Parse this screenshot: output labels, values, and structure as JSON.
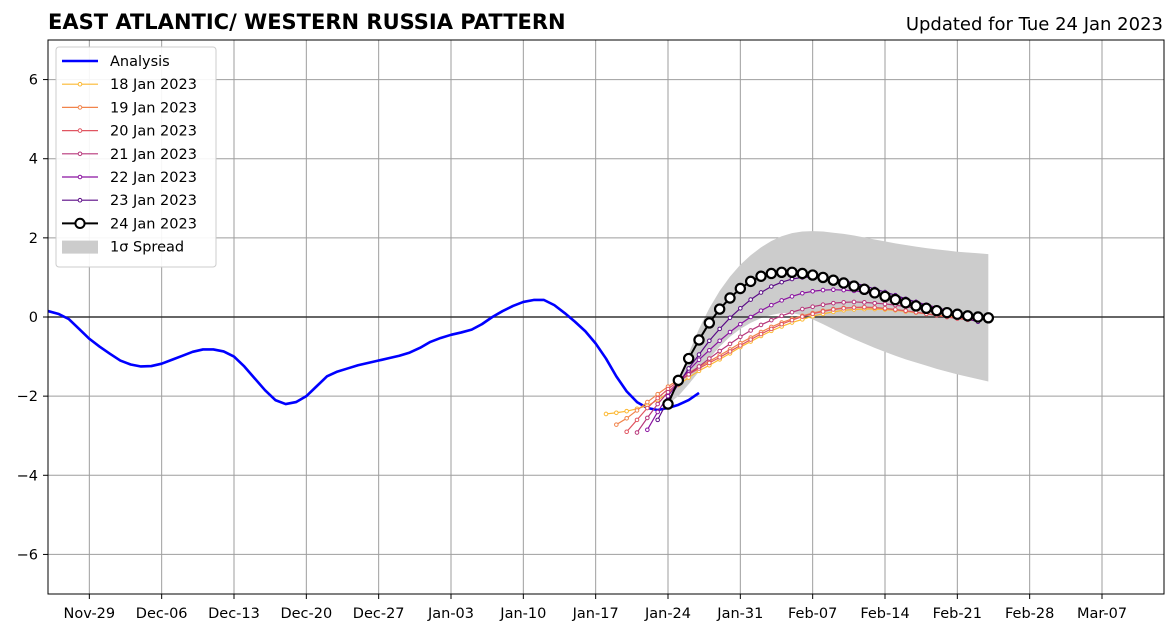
{
  "chart_data": {
    "type": "line",
    "title": "EAST ATLANTIC/ WESTERN RUSSIA PATTERN",
    "subtitle": "Updated for Tue 24 Jan 2023",
    "x_ticks": [
      "Nov-29",
      "Dec-06",
      "Dec-13",
      "Dec-20",
      "Dec-27",
      "Jan-03",
      "Jan-10",
      "Jan-17",
      "Jan-24",
      "Jan-31",
      "Feb-07",
      "Feb-14",
      "Feb-21",
      "Feb-28",
      "Mar-07"
    ],
    "y_ticks": [
      "−6",
      "−4",
      "−2",
      "0",
      "2",
      "4",
      "6"
    ],
    "ylim": [
      -7,
      7
    ],
    "xlim": [
      "2022-11-25",
      "2023-03-13"
    ],
    "grid": true,
    "legend_position": "upper-left",
    "analysis": {
      "name": "Analysis",
      "color": "#0000ff",
      "start_date": "2022-11-25",
      "values": [
        0.15,
        0.08,
        -0.05,
        -0.3,
        -0.55,
        -0.75,
        -0.93,
        -1.1,
        -1.2,
        -1.25,
        -1.24,
        -1.18,
        -1.08,
        -0.98,
        -0.88,
        -0.82,
        -0.82,
        -0.87,
        -1.0,
        -1.25,
        -1.55,
        -1.85,
        -2.1,
        -2.2,
        -2.15,
        -2.0,
        -1.75,
        -1.5,
        -1.38,
        -1.3,
        -1.22,
        -1.16,
        -1.1,
        -1.04,
        -0.98,
        -0.9,
        -0.78,
        -0.63,
        -0.53,
        -0.45,
        -0.39,
        -0.32,
        -0.18,
        0.0,
        0.15,
        0.28,
        0.38,
        0.43,
        0.43,
        0.3,
        0.1,
        -0.12,
        -0.36,
        -0.67,
        -1.05,
        -1.5,
        -1.88,
        -2.15,
        -2.3,
        -2.35,
        -2.3,
        -2.22,
        -2.1,
        -1.92
      ]
    },
    "forecasts": [
      {
        "name": "18 Jan 2023",
        "color": "#fcb831",
        "start": "2023-01-18",
        "values": [
          -2.45,
          -2.42,
          -2.38,
          -2.32,
          -2.24,
          -2.1,
          -1.92,
          -1.72,
          -1.53,
          -1.36,
          -1.22,
          -1.07,
          -0.92,
          -0.76,
          -0.62,
          -0.48,
          -0.35,
          -0.24,
          -0.14,
          -0.06,
          0.02,
          0.08,
          0.13,
          0.17,
          0.19,
          0.2,
          0.2,
          0.19,
          0.17,
          0.14,
          0.11,
          0.08,
          0.05,
          0.02,
          -0.01,
          -0.04,
          -0.07
        ]
      },
      {
        "name": "19 Jan 2023",
        "color": "#f1844b",
        "start": "2023-01-19",
        "values": [
          -2.72,
          -2.56,
          -2.36,
          -2.15,
          -1.95,
          -1.76,
          -1.58,
          -1.41,
          -1.26,
          -1.12,
          -0.97,
          -0.82,
          -0.66,
          -0.52,
          -0.38,
          -0.25,
          -0.14,
          -0.05,
          0.03,
          0.1,
          0.16,
          0.2,
          0.23,
          0.24,
          0.24,
          0.23,
          0.21,
          0.18,
          0.15,
          0.12,
          0.08,
          0.04,
          0.0,
          -0.03,
          -0.06,
          -0.09
        ]
      },
      {
        "name": "20 Jan 2023",
        "color": "#e05561",
        "start": "2023-01-20",
        "values": [
          -2.9,
          -2.6,
          -2.3,
          -2.05,
          -1.82,
          -1.62,
          -1.45,
          -1.3,
          -1.16,
          -1.02,
          -0.87,
          -0.72,
          -0.57,
          -0.43,
          -0.3,
          -0.18,
          -0.08,
          0.01,
          0.08,
          0.14,
          0.19,
          0.22,
          0.24,
          0.25,
          0.24,
          0.22,
          0.19,
          0.16,
          0.12,
          0.08,
          0.04,
          0.0,
          -0.04,
          -0.07,
          -0.1
        ]
      },
      {
        "name": "21 Jan 2023",
        "color": "#b7367a",
        "start": "2023-01-21",
        "values": [
          -2.92,
          -2.55,
          -2.2,
          -1.9,
          -1.65,
          -1.45,
          -1.25,
          -1.05,
          -0.86,
          -0.68,
          -0.5,
          -0.34,
          -0.2,
          -0.08,
          0.03,
          0.12,
          0.2,
          0.26,
          0.31,
          0.35,
          0.37,
          0.38,
          0.37,
          0.35,
          0.33,
          0.3,
          0.26,
          0.22,
          0.17,
          0.12,
          0.07,
          0.02,
          -0.03,
          -0.08
        ]
      },
      {
        "name": "22 Jan 2023",
        "color": "#8a13a0",
        "start": "2023-01-22",
        "values": [
          -2.85,
          -2.4,
          -2.0,
          -1.65,
          -1.35,
          -1.08,
          -0.84,
          -0.6,
          -0.38,
          -0.18,
          0.0,
          0.16,
          0.3,
          0.42,
          0.52,
          0.6,
          0.65,
          0.68,
          0.69,
          0.68,
          0.66,
          0.63,
          0.59,
          0.55,
          0.5,
          0.44,
          0.38,
          0.31,
          0.24,
          0.17,
          0.1,
          0.03,
          -0.04
        ]
      },
      {
        "name": "23 Jan 2023",
        "color": "#5a0a86",
        "start": "2023-01-23",
        "values": [
          -2.6,
          -2.1,
          -1.7,
          -1.3,
          -0.95,
          -0.6,
          -0.3,
          -0.02,
          0.22,
          0.44,
          0.62,
          0.77,
          0.88,
          0.96,
          1.0,
          1.01,
          1.0,
          0.97,
          0.92,
          0.86,
          0.79,
          0.71,
          0.63,
          0.55,
          0.46,
          0.38,
          0.29,
          0.2,
          0.11,
          0.03,
          -0.05,
          -0.12
        ]
      },
      {
        "name": "24 Jan 2023",
        "color": "#000000",
        "start": "2023-01-24",
        "values": [
          -2.2,
          -1.6,
          -1.05,
          -0.58,
          -0.15,
          0.2,
          0.48,
          0.72,
          0.9,
          1.03,
          1.1,
          1.13,
          1.13,
          1.1,
          1.06,
          1.0,
          0.93,
          0.86,
          0.78,
          0.7,
          0.61,
          0.52,
          0.44,
          0.36,
          0.28,
          0.22,
          0.16,
          0.11,
          0.07,
          0.03,
          0.0,
          -0.02
        ]
      }
    ],
    "spread": {
      "name": "1σ Spread",
      "color": "#cccccc",
      "start": "2023-01-24",
      "upper": [
        -2.2,
        -1.6,
        -0.92,
        -0.3,
        0.22,
        0.66,
        1.02,
        1.32,
        1.56,
        1.76,
        1.92,
        2.04,
        2.12,
        2.16,
        2.17,
        2.16,
        2.13,
        2.1,
        2.06,
        2.01,
        1.96,
        1.91,
        1.86,
        1.82,
        1.78,
        1.74,
        1.71,
        1.68,
        1.65,
        1.63,
        1.61,
        1.59
      ],
      "lower": [
        -2.2,
        -2.0,
        -1.7,
        -1.38,
        -1.05,
        -0.75,
        -0.5,
        -0.3,
        -0.15,
        -0.03,
        0.05,
        0.1,
        0.1,
        0.04,
        -0.06,
        -0.18,
        -0.31,
        -0.44,
        -0.56,
        -0.67,
        -0.78,
        -0.88,
        -0.98,
        -1.07,
        -1.15,
        -1.23,
        -1.31,
        -1.38,
        -1.45,
        -1.51,
        -1.57,
        -1.63
      ]
    },
    "legend": [
      "Analysis",
      "18 Jan 2023",
      "19 Jan 2023",
      "20 Jan 2023",
      "21 Jan 2023",
      "22 Jan 2023",
      "23 Jan 2023",
      "24 Jan 2023",
      "1σ Spread"
    ]
  }
}
